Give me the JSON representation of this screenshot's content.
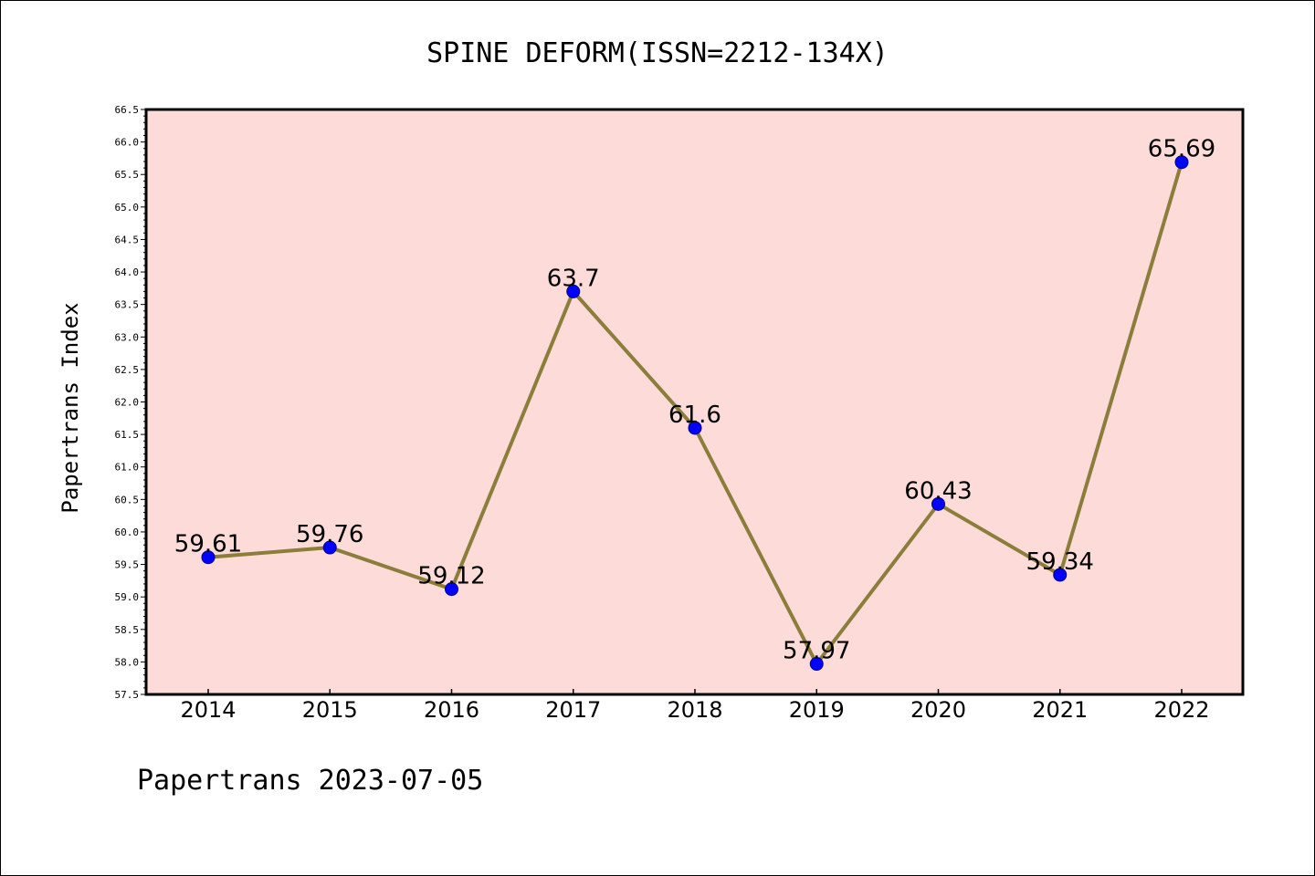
{
  "chart_data": {
    "type": "line",
    "title": "SPINE DEFORM(ISSN=2212-134X)",
    "xlabel": "",
    "ylabel": "Papertrans Index",
    "categories": [
      "2014",
      "2015",
      "2016",
      "2017",
      "2018",
      "2019",
      "2020",
      "2021",
      "2022"
    ],
    "series": [
      {
        "values": [
          59.61,
          59.76,
          59.12,
          63.7,
          61.6,
          57.97,
          60.43,
          59.34,
          65.69
        ],
        "data_labels": [
          "59.61",
          "59.76",
          "59.12",
          "63.7",
          "61.6",
          "57.97",
          "60.43",
          "59.34",
          "65.69"
        ],
        "line_color": "#8b7d3a",
        "marker_color": "#0000ff"
      }
    ],
    "ylim": [
      57.5,
      66.5
    ],
    "y_ticks": [
      "57.5",
      "58.0",
      "58.5",
      "59.0",
      "59.5",
      "60.0",
      "60.5",
      "61.0",
      "61.5",
      "62.0",
      "62.5",
      "63.0",
      "63.5",
      "64.0",
      "64.5",
      "65.0",
      "65.5",
      "66.0",
      "66.5"
    ],
    "plot_background": "#fddbd8",
    "grid": false,
    "legend": "none"
  },
  "footer": "Papertrans 2023-07-05"
}
